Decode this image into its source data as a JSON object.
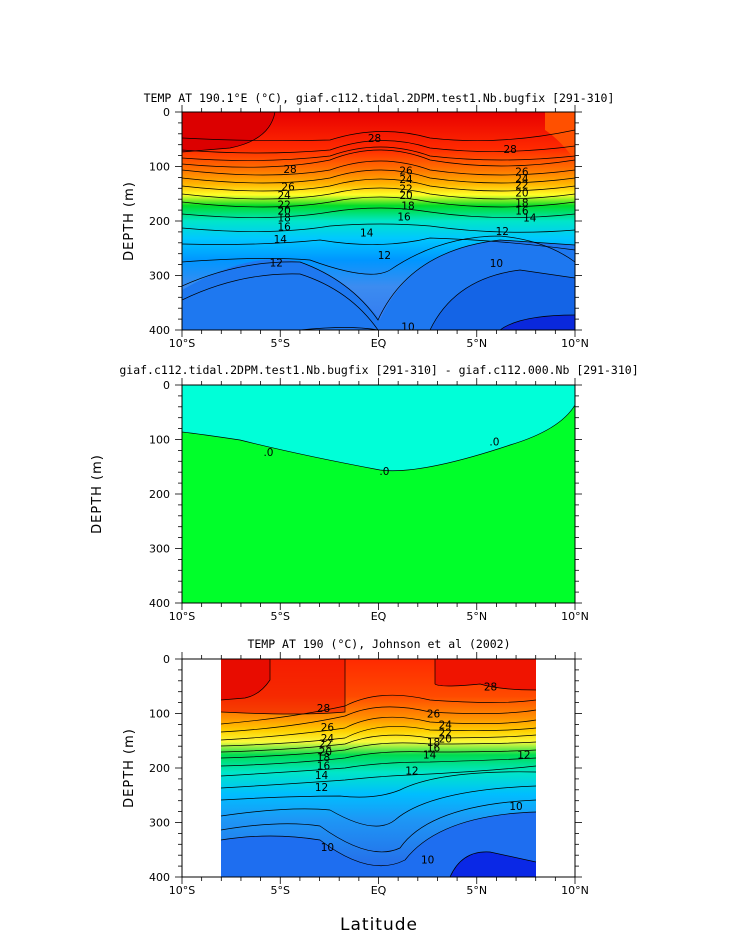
{
  "xlabel": "Latitude",
  "chart_data": [
    {
      "type": "heatmap",
      "title": "TEMP AT 190.1°E (°C), giaf.c112.tidal.2DPM.test1.Nb.bugfix [291-310]",
      "ylabel": "DEPTH (m)",
      "x_ticks": [
        "10°S",
        "5°S",
        "EQ",
        "5°N",
        "10°N"
      ],
      "y_ticks": [
        "0",
        "100",
        "200",
        "300",
        "400"
      ],
      "xlim": [
        -10,
        10
      ],
      "ylim": [
        400,
        0
      ],
      "data_extent": [
        -10,
        10
      ],
      "contour_labels": [
        {
          "text": "28",
          "x": -0.2,
          "y": 48
        },
        {
          "text": "28",
          "x": 6.7,
          "y": 68
        },
        {
          "text": "28",
          "x": -4.5,
          "y": 105
        },
        {
          "text": "26",
          "x": 1.4,
          "y": 107
        },
        {
          "text": "24",
          "x": 1.4,
          "y": 123
        },
        {
          "text": "22",
          "x": 1.4,
          "y": 140
        },
        {
          "text": "20",
          "x": 1.4,
          "y": 152
        },
        {
          "text": "18",
          "x": 1.5,
          "y": 172
        },
        {
          "text": "16",
          "x": 1.3,
          "y": 192
        },
        {
          "text": "14",
          "x": -0.6,
          "y": 221
        },
        {
          "text": "12",
          "x": 0.3,
          "y": 262
        },
        {
          "text": "10",
          "x": 1.5,
          "y": 394
        },
        {
          "text": "10",
          "x": 6.0,
          "y": 277
        },
        {
          "text": "12",
          "x": 6.3,
          "y": 218
        },
        {
          "text": "14",
          "x": 7.7,
          "y": 194
        },
        {
          "text": "16",
          "x": 7.3,
          "y": 181
        },
        {
          "text": "18",
          "x": 7.3,
          "y": 166
        },
        {
          "text": "20",
          "x": 7.3,
          "y": 148
        },
        {
          "text": "22",
          "x": 7.3,
          "y": 133
        },
        {
          "text": "24",
          "x": 7.3,
          "y": 122
        },
        {
          "text": "26",
          "x": 7.3,
          "y": 109
        },
        {
          "text": "26",
          "x": -4.6,
          "y": 137
        },
        {
          "text": "24",
          "x": -4.8,
          "y": 152
        },
        {
          "text": "22",
          "x": -4.8,
          "y": 170
        },
        {
          "text": "20",
          "x": -4.8,
          "y": 181
        },
        {
          "text": "18",
          "x": -4.8,
          "y": 194
        },
        {
          "text": "16",
          "x": -4.8,
          "y": 210
        },
        {
          "text": "14",
          "x": -5.0,
          "y": 233
        },
        {
          "text": "12",
          "x": -5.2,
          "y": 276
        }
      ]
    },
    {
      "type": "heatmap",
      "title": "giaf.c112.tidal.2DPM.test1.Nb.bugfix [291-310] - giaf.c112.000.Nb [291-310]",
      "ylabel": "DEPTH (m)",
      "x_ticks": [
        "10°S",
        "5°S",
        "EQ",
        "5°N",
        "10°N"
      ],
      "y_ticks": [
        "0",
        "100",
        "200",
        "300",
        "400"
      ],
      "xlim": [
        -10,
        10
      ],
      "ylim": [
        400,
        0
      ],
      "contour_labels": [
        {
          "text": ".0",
          "x": -5.6,
          "y": 123
        },
        {
          "text": ".0",
          "x": 0.3,
          "y": 158
        },
        {
          "text": ".0",
          "x": 5.9,
          "y": 104
        }
      ]
    },
    {
      "type": "heatmap",
      "title": "TEMP AT 190 (°C), Johnson et al (2002)",
      "ylabel": "DEPTH (m)",
      "x_ticks": [
        "10°S",
        "5°S",
        "EQ",
        "5°N",
        "10°N"
      ],
      "y_ticks": [
        "0",
        "100",
        "200",
        "300",
        "400"
      ],
      "xlim": [
        -10,
        10
      ],
      "ylim": [
        400,
        0
      ],
      "data_extent": [
        -8,
        8
      ],
      "contour_labels": [
        {
          "text": "28",
          "x": -2.8,
          "y": 90
        },
        {
          "text": "28",
          "x": 5.7,
          "y": 50
        },
        {
          "text": "26",
          "x": 2.8,
          "y": 100
        },
        {
          "text": "24",
          "x": 3.4,
          "y": 120
        },
        {
          "text": "22",
          "x": 3.4,
          "y": 135
        },
        {
          "text": "20",
          "x": 3.4,
          "y": 146
        },
        {
          "text": "18",
          "x": 2.8,
          "y": 152
        },
        {
          "text": "16",
          "x": 2.8,
          "y": 162
        },
        {
          "text": "14",
          "x": 2.6,
          "y": 175
        },
        {
          "text": "12",
          "x": 1.7,
          "y": 205
        },
        {
          "text": "12",
          "x": 7.4,
          "y": 175
        },
        {
          "text": "10",
          "x": 7.0,
          "y": 270
        },
        {
          "text": "10",
          "x": 2.5,
          "y": 368
        },
        {
          "text": "10",
          "x": -2.6,
          "y": 345
        },
        {
          "text": "12",
          "x": -2.9,
          "y": 235
        },
        {
          "text": "14",
          "x": -2.9,
          "y": 213
        },
        {
          "text": "16",
          "x": -2.8,
          "y": 195
        },
        {
          "text": "18",
          "x": -2.8,
          "y": 180
        },
        {
          "text": "20",
          "x": -2.7,
          "y": 170
        },
        {
          "text": "22",
          "x": -2.7,
          "y": 155
        },
        {
          "text": "24",
          "x": -2.6,
          "y": 145
        },
        {
          "text": "26",
          "x": -2.6,
          "y": 125
        }
      ]
    }
  ]
}
